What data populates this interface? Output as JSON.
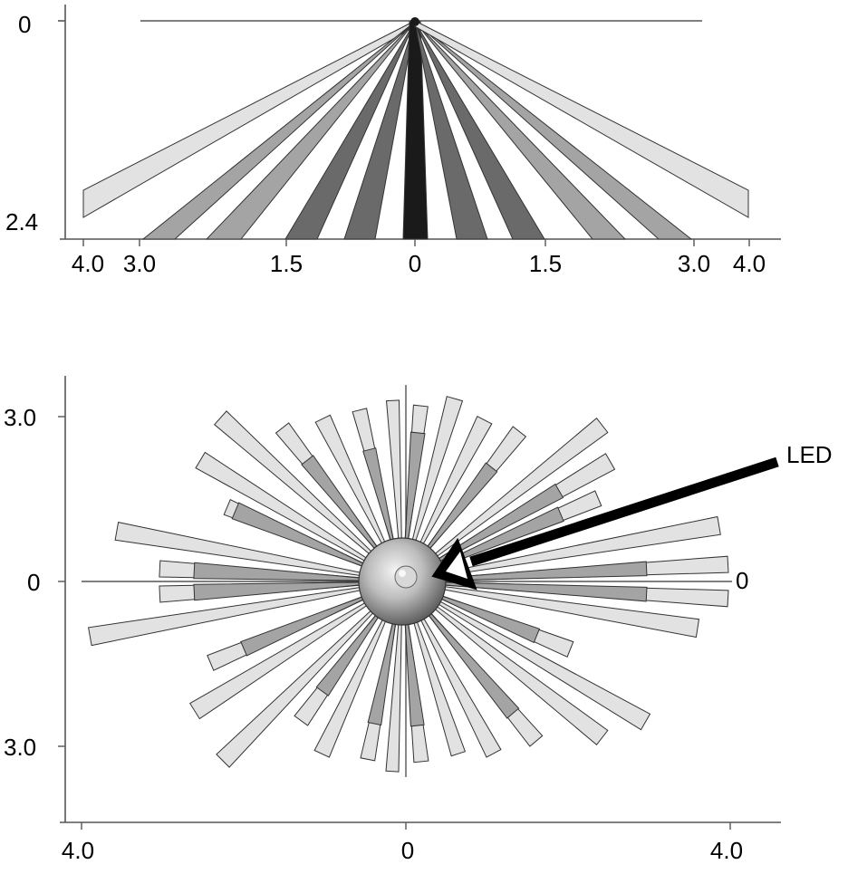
{
  "side_view": {
    "y_ticks": [
      "0",
      "2.4"
    ],
    "x_ticks": [
      "4.0",
      "3.0",
      "1.5",
      "0",
      "1.5",
      "3.0",
      "4.0"
    ]
  },
  "top_view": {
    "y_ticks": [
      "3.0",
      "0",
      "3.0"
    ],
    "x_ticks": [
      "4.0",
      "0",
      "4.0"
    ],
    "right_label": "0",
    "annotation": "LED"
  },
  "colors": {
    "light": "#e2e2e2",
    "mid": "#a4a4a4",
    "dark": "#6a6a6a",
    "black": "#1a1a1a",
    "outline": "#333333"
  }
}
